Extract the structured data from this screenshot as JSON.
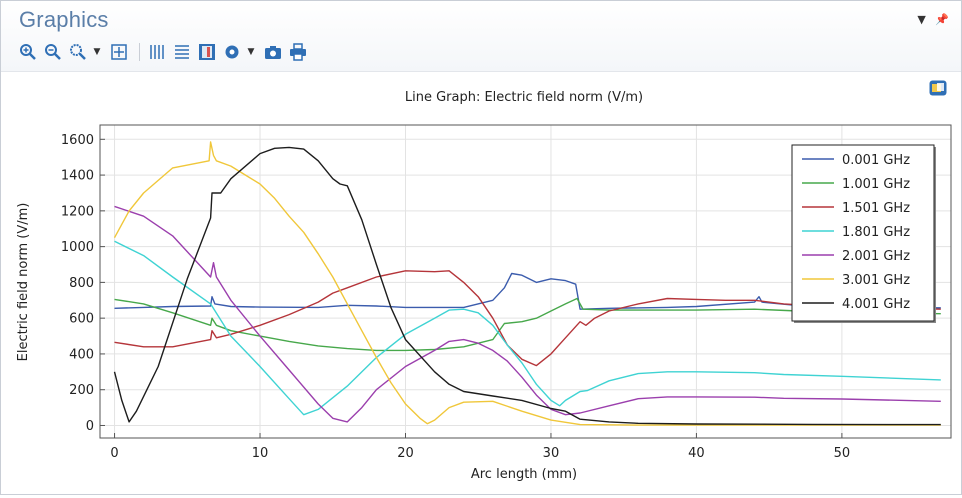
{
  "window": {
    "title": "Graphics",
    "controls": [
      "chevron-down-icon",
      "pin-icon"
    ]
  },
  "toolbar": {
    "items": [
      "zoom-in-icon",
      "zoom-out-icon",
      "zoom-box-icon",
      "zoom-extents-icon",
      "show-grid-icon",
      "show-legend-icon",
      "color-table-icon",
      "scene-light-icon",
      "screenshot-icon",
      "print-icon"
    ]
  },
  "chart_data": {
    "type": "line",
    "title": "Line Graph: Electric field norm (V/m)",
    "xlabel": "Arc length (mm)",
    "ylabel": "Electric field norm (V/m)",
    "xlim": [
      -1,
      57.5
    ],
    "ylim": [
      -70,
      1680
    ],
    "xticks": [
      0,
      10,
      20,
      30,
      40,
      50
    ],
    "yticks": [
      0,
      200,
      400,
      600,
      800,
      1000,
      1200,
      1400,
      1600
    ],
    "grid": true,
    "legend_position": "top-right",
    "series": [
      {
        "name": "0.001 GHz",
        "color": "#3b5cad",
        "points": [
          [
            0,
            655
          ],
          [
            2,
            660
          ],
          [
            4,
            665
          ],
          [
            6.6,
            668
          ],
          [
            6.7,
            720
          ],
          [
            6.9,
            680
          ],
          [
            8,
            665
          ],
          [
            10,
            662
          ],
          [
            14,
            660
          ],
          [
            16,
            672
          ],
          [
            18,
            668
          ],
          [
            20,
            660
          ],
          [
            24,
            660
          ],
          [
            26,
            700
          ],
          [
            26.8,
            770
          ],
          [
            27.3,
            850
          ],
          [
            28,
            840
          ],
          [
            29,
            800
          ],
          [
            30,
            820
          ],
          [
            31,
            810
          ],
          [
            31.7,
            790
          ],
          [
            32,
            650
          ],
          [
            34,
            655
          ],
          [
            38,
            660
          ],
          [
            40,
            665
          ],
          [
            44,
            690
          ],
          [
            44.3,
            720
          ],
          [
            44.5,
            690
          ],
          [
            47,
            670
          ],
          [
            50,
            660
          ],
          [
            56.8,
            658
          ]
        ]
      },
      {
        "name": "1.001 GHz",
        "color": "#47a84b",
        "points": [
          [
            0,
            705
          ],
          [
            2,
            680
          ],
          [
            4,
            630
          ],
          [
            6.6,
            560
          ],
          [
            6.7,
            600
          ],
          [
            7,
            560
          ],
          [
            8,
            530
          ],
          [
            10,
            500
          ],
          [
            12,
            470
          ],
          [
            14,
            445
          ],
          [
            16,
            430
          ],
          [
            18,
            420
          ],
          [
            20,
            420
          ],
          [
            22,
            425
          ],
          [
            24,
            440
          ],
          [
            26,
            480
          ],
          [
            26.8,
            570
          ],
          [
            28,
            580
          ],
          [
            29,
            600
          ],
          [
            30,
            640
          ],
          [
            31,
            680
          ],
          [
            31.8,
            710
          ],
          [
            32.2,
            650
          ],
          [
            34,
            645
          ],
          [
            38,
            645
          ],
          [
            40,
            645
          ],
          [
            44,
            650
          ],
          [
            47,
            640
          ],
          [
            50,
            630
          ],
          [
            56.8,
            625
          ]
        ]
      },
      {
        "name": "1.501 GHz",
        "color": "#b5353a",
        "points": [
          [
            0,
            465
          ],
          [
            2,
            440
          ],
          [
            4,
            440
          ],
          [
            6.6,
            480
          ],
          [
            6.7,
            530
          ],
          [
            7,
            490
          ],
          [
            8,
            510
          ],
          [
            10,
            560
          ],
          [
            12,
            620
          ],
          [
            14,
            690
          ],
          [
            15,
            740
          ],
          [
            16,
            770
          ],
          [
            18,
            830
          ],
          [
            20,
            865
          ],
          [
            22,
            860
          ],
          [
            23,
            865
          ],
          [
            24,
            800
          ],
          [
            25,
            720
          ],
          [
            26,
            600
          ],
          [
            27,
            450
          ],
          [
            28,
            370
          ],
          [
            29,
            335
          ],
          [
            30,
            400
          ],
          [
            31,
            490
          ],
          [
            32,
            580
          ],
          [
            32.4,
            560
          ],
          [
            33,
            600
          ],
          [
            34,
            640
          ],
          [
            36,
            680
          ],
          [
            38,
            710
          ],
          [
            40,
            705
          ],
          [
            42,
            700
          ],
          [
            44,
            700
          ],
          [
            46,
            680
          ],
          [
            48,
            670
          ],
          [
            52,
            660
          ],
          [
            56.8,
            650
          ]
        ]
      },
      {
        "name": "1.801 GHz",
        "color": "#3fd3d3",
        "points": [
          [
            0,
            1030
          ],
          [
            2,
            950
          ],
          [
            4,
            830
          ],
          [
            6.6,
            680
          ],
          [
            8,
            500
          ],
          [
            10,
            330
          ],
          [
            12,
            150
          ],
          [
            13,
            60
          ],
          [
            14,
            90
          ],
          [
            16,
            220
          ],
          [
            18,
            380
          ],
          [
            20,
            510
          ],
          [
            22,
            600
          ],
          [
            23,
            645
          ],
          [
            24,
            650
          ],
          [
            25,
            630
          ],
          [
            26,
            560
          ],
          [
            27,
            450
          ],
          [
            28,
            350
          ],
          [
            29,
            230
          ],
          [
            30,
            140
          ],
          [
            30.6,
            110
          ],
          [
            31,
            140
          ],
          [
            32,
            190
          ],
          [
            32.5,
            195
          ],
          [
            34,
            250
          ],
          [
            36,
            290
          ],
          [
            38,
            300
          ],
          [
            40,
            300
          ],
          [
            44,
            295
          ],
          [
            46,
            285
          ],
          [
            50,
            275
          ],
          [
            56.8,
            255
          ]
        ]
      },
      {
        "name": "2.001 GHz",
        "color": "#9b3fad",
        "points": [
          [
            0,
            1225
          ],
          [
            2,
            1170
          ],
          [
            4,
            1060
          ],
          [
            6.6,
            830
          ],
          [
            6.8,
            910
          ],
          [
            7,
            830
          ],
          [
            8,
            700
          ],
          [
            10,
            500
          ],
          [
            12,
            310
          ],
          [
            14,
            120
          ],
          [
            15,
            40
          ],
          [
            16,
            20
          ],
          [
            17,
            100
          ],
          [
            18,
            200
          ],
          [
            20,
            330
          ],
          [
            22,
            420
          ],
          [
            23,
            470
          ],
          [
            24,
            480
          ],
          [
            25,
            460
          ],
          [
            26,
            420
          ],
          [
            27,
            360
          ],
          [
            28,
            270
          ],
          [
            29,
            170
          ],
          [
            30,
            90
          ],
          [
            31,
            60
          ],
          [
            32,
            70
          ],
          [
            34,
            110
          ],
          [
            36,
            150
          ],
          [
            38,
            160
          ],
          [
            40,
            160
          ],
          [
            44,
            158
          ],
          [
            46,
            152
          ],
          [
            50,
            148
          ],
          [
            56.8,
            135
          ]
        ]
      },
      {
        "name": "3.001 GHz",
        "color": "#f0c73a",
        "points": [
          [
            0,
            1050
          ],
          [
            1,
            1200
          ],
          [
            2,
            1300
          ],
          [
            3,
            1370
          ],
          [
            4,
            1440
          ],
          [
            6.5,
            1480
          ],
          [
            6.6,
            1585
          ],
          [
            6.8,
            1510
          ],
          [
            7,
            1480
          ],
          [
            8,
            1450
          ],
          [
            9,
            1400
          ],
          [
            10,
            1350
          ],
          [
            11,
            1270
          ],
          [
            12,
            1170
          ],
          [
            13,
            1080
          ],
          [
            14,
            960
          ],
          [
            15,
            830
          ],
          [
            16,
            680
          ],
          [
            17,
            530
          ],
          [
            18,
            380
          ],
          [
            19,
            240
          ],
          [
            20,
            120
          ],
          [
            21,
            40
          ],
          [
            21.5,
            10
          ],
          [
            22,
            30
          ],
          [
            23,
            100
          ],
          [
            24,
            130
          ],
          [
            26,
            135
          ],
          [
            28,
            80
          ],
          [
            30,
            30
          ],
          [
            32,
            5
          ],
          [
            36,
            2
          ],
          [
            44,
            2
          ],
          [
            56.8,
            2
          ]
        ]
      },
      {
        "name": "4.001 GHz",
        "color": "#1d1d1d",
        "points": [
          [
            0,
            300
          ],
          [
            0.5,
            140
          ],
          [
            1,
            20
          ],
          [
            1.5,
            80
          ],
          [
            3,
            330
          ],
          [
            5,
            820
          ],
          [
            6.6,
            1160
          ],
          [
            6.7,
            1300
          ],
          [
            7.3,
            1300
          ],
          [
            8,
            1380
          ],
          [
            10,
            1520
          ],
          [
            11,
            1550
          ],
          [
            12,
            1555
          ],
          [
            13,
            1545
          ],
          [
            14,
            1480
          ],
          [
            15,
            1380
          ],
          [
            15.5,
            1350
          ],
          [
            16,
            1340
          ],
          [
            17,
            1150
          ],
          [
            18,
            900
          ],
          [
            19,
            660
          ],
          [
            20,
            480
          ],
          [
            22,
            300
          ],
          [
            23,
            230
          ],
          [
            24,
            190
          ],
          [
            26,
            165
          ],
          [
            28,
            140
          ],
          [
            30,
            95
          ],
          [
            31,
            80
          ],
          [
            32,
            35
          ],
          [
            34,
            20
          ],
          [
            36,
            12
          ],
          [
            40,
            8
          ],
          [
            48,
            6
          ],
          [
            56.8,
            5
          ]
        ]
      }
    ]
  }
}
